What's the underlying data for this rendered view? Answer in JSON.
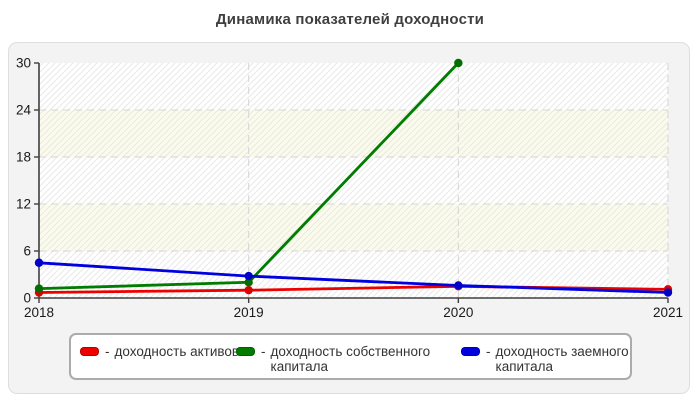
{
  "page": {
    "title": "Динамика показателей доходности"
  },
  "chart_data": {
    "type": "line",
    "title": "Динамика показателей доходности",
    "categories": [
      "2018",
      "2019",
      "2020",
      "2021"
    ],
    "series": [
      {
        "name": "доходность активов",
        "color": "#ee0000",
        "point_color": "#dd0000",
        "values": [
          0.7,
          1.0,
          1.5,
          1.1
        ]
      },
      {
        "name": "доходность собственного капитала",
        "color": "#007d00",
        "point_color": "#006e00",
        "values": [
          1.2,
          2.0,
          30,
          null
        ]
      },
      {
        "name": "доходность заемного капитала",
        "color": "#0000e0",
        "point_color": "#0000c8",
        "values": [
          4.5,
          2.8,
          1.6,
          0.7
        ]
      }
    ],
    "xlabel": "",
    "ylabel": "",
    "ylim": [
      0,
      30
    ],
    "yticks": [
      0,
      6,
      12,
      18,
      24,
      30
    ],
    "grid": "dashed horizontal at yticks and dashed vertical at years",
    "legend_position": "bottom",
    "plot_bands": {
      "band_colors": [
        "#ffffff",
        "#fbfbec"
      ],
      "hatch": true,
      "hatch_color": "#e8e8e8"
    },
    "axis_color": "#3f3f3f",
    "tick_label_color": "#1a1a1a"
  },
  "legend": {
    "items": [
      {
        "dash": "-",
        "label": "доходность активов",
        "color": "#ee0000"
      },
      {
        "dash": "-",
        "label": "доходность собственного\nкапитала",
        "color": "#007d00"
      },
      {
        "dash": "-",
        "label": "доходность заемного\nкапитала",
        "color": "#0000e0"
      }
    ]
  }
}
